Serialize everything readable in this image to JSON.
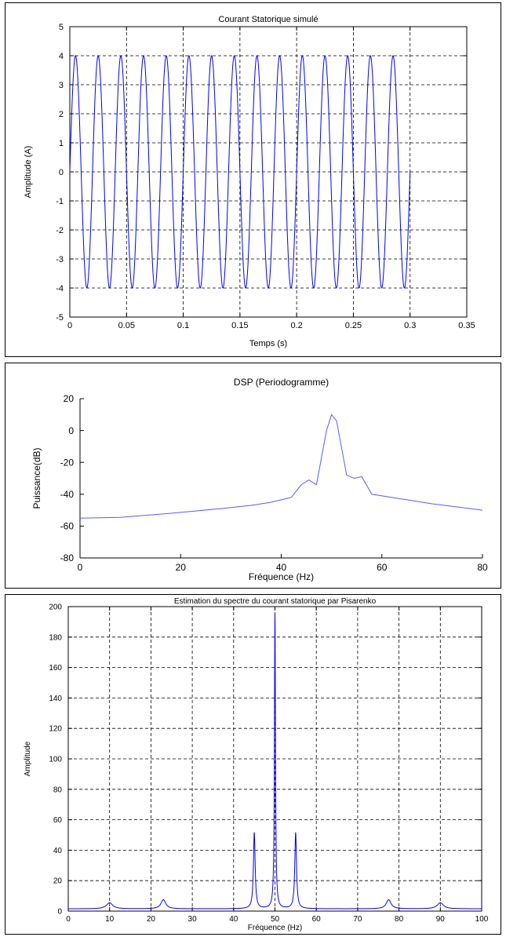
{
  "chart_data": [
    {
      "type": "line",
      "title": "Courant Statorique simulé",
      "xlabel": "Temps (s)",
      "ylabel": "Amplitude (A)",
      "xlim": [
        0,
        0.35
      ],
      "ylim": [
        -5,
        5
      ],
      "xticks": [
        "0",
        "0.05",
        "0.1",
        "0.15",
        "0.2",
        "0.25",
        "0.3",
        "0.35"
      ],
      "yticks": [
        "-5",
        "-4",
        "-3",
        "-2",
        "-1",
        "0",
        "1",
        "2",
        "3",
        "4",
        "5"
      ],
      "grid": true,
      "series": [
        {
          "amplitude": 4,
          "frequency": 50,
          "x_start": 0,
          "x_end": 0.3,
          "color": "#0000ff"
        }
      ]
    },
    {
      "type": "line",
      "title": "DSP (Periodogramme)",
      "xlabel": "Fréquence (Hz)",
      "ylabel": "Puissance(dB)",
      "xlim": [
        0,
        80
      ],
      "ylim": [
        -80,
        20
      ],
      "xticks": [
        "0",
        "20",
        "40",
        "60",
        "80"
      ],
      "yticks": [
        "-80",
        "-60",
        "-40",
        "-20",
        "0",
        "20"
      ],
      "grid": false,
      "series": [
        {
          "color": "#5a5aff",
          "x": [
            0,
            8,
            18,
            28,
            34,
            38,
            42,
            44,
            45.5,
            47,
            49,
            50,
            51,
            53,
            54.5,
            56,
            58,
            62,
            66,
            70,
            75,
            80
          ],
          "y": [
            -55,
            -54.5,
            -52,
            -49,
            -47,
            -45,
            -42,
            -34,
            -31,
            -34,
            0,
            10,
            6,
            -28,
            -30,
            -29,
            -40,
            -42,
            -44,
            -46,
            -48,
            -50
          ]
        }
      ]
    },
    {
      "type": "line",
      "title": "Estimation du spectre du courant statorique par Pisarenko",
      "xlabel": "Fréquence (Hz)",
      "ylabel": "Amplitude",
      "xlim": [
        0,
        100
      ],
      "ylim": [
        0,
        200
      ],
      "xticks": [
        "0",
        "10",
        "20",
        "30",
        "40",
        "50",
        "60",
        "70",
        "80",
        "90",
        "100"
      ],
      "yticks": [
        "0",
        "20",
        "40",
        "60",
        "80",
        "100",
        "120",
        "140",
        "160",
        "180",
        "200"
      ],
      "grid": true,
      "series": [
        {
          "color": "#0000ff",
          "baseline": 1.5,
          "peaks": [
            {
              "f": 10,
              "amp": 4,
              "width": 0.9
            },
            {
              "f": 23,
              "amp": 6,
              "width": 0.7
            },
            {
              "f": 45,
              "amp": 50,
              "width": 0.25
            },
            {
              "f": 50,
              "amp": 194,
              "width": 0.15
            },
            {
              "f": 55,
              "amp": 50,
              "width": 0.25
            },
            {
              "f": 77.5,
              "amp": 6,
              "width": 0.7
            },
            {
              "f": 90,
              "amp": 4,
              "width": 0.9
            }
          ]
        }
      ]
    }
  ]
}
